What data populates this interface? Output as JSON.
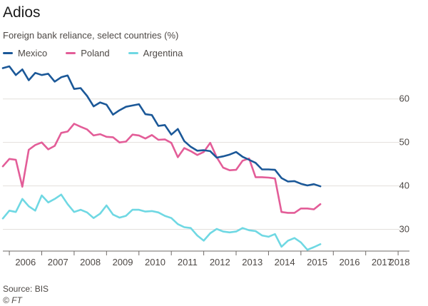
{
  "header": {
    "title": "Adios",
    "subtitle": "Foreign bank reliance, select countries (%)"
  },
  "footer": {
    "source": "Source: BIS",
    "credit": "© FT"
  },
  "colors": {
    "Mexico": "#1b5898",
    "Poland": "#e35d98",
    "Argentina": "#6fd8e3",
    "grid": "#e2dfdc",
    "axis": "#6e6a67"
  },
  "chart_data": {
    "type": "line",
    "title": "",
    "xlabel": "",
    "ylabel": "",
    "xlim": [
      2005.8,
      2018.35
    ],
    "ylim": [
      25,
      68
    ],
    "yticks": [
      30,
      40,
      50,
      60
    ],
    "xtick_labels": [
      "2006",
      "2007",
      "2008",
      "2009",
      "2010",
      "2011",
      "2012",
      "2013",
      "2014",
      "2015",
      "2016",
      "2017",
      "2018"
    ],
    "grid": true,
    "legend": "top-left",
    "series": [
      {
        "name": "Mexico",
        "x": [
          2005.8,
          2006.0,
          2006.2,
          2006.4,
          2006.6,
          2006.8,
          2007.0,
          2007.2,
          2007.4,
          2007.6,
          2007.8,
          2008.0,
          2008.2,
          2008.4,
          2008.6,
          2008.8,
          2009.0,
          2009.2,
          2009.4,
          2009.6,
          2009.8,
          2010.0,
          2010.2,
          2010.4,
          2010.6,
          2010.8,
          2011.0,
          2011.2,
          2011.4,
          2011.6,
          2011.8,
          2012.0,
          2012.2,
          2012.4,
          2012.6,
          2012.8,
          2013.0,
          2013.2,
          2013.4,
          2013.6,
          2013.8,
          2014.0,
          2014.2,
          2014.4,
          2014.6,
          2014.8,
          2015.0,
          2015.2,
          2015.4,
          2015.6,
          2015.8,
          2016.0,
          2016.2,
          2016.4,
          2016.6,
          2016.8,
          2017.0,
          2017.2,
          2017.4,
          2017.6,
          2017.8,
          2018.0,
          2018.2
        ],
        "values": [
          67.1,
          67.5,
          65.5,
          66.8,
          64.3,
          66.0,
          65.5,
          65.8,
          64.0,
          65.0,
          65.4,
          62.3,
          62.5,
          60.7,
          58.3,
          59.2,
          58.7,
          56.4,
          57.4,
          58.2,
          58.5,
          58.8,
          56.5,
          56.3,
          53.8,
          54.0,
          51.8,
          53.1,
          50.3,
          49.0,
          48.1,
          48.2,
          48.0,
          46.5,
          46.8,
          47.2,
          47.8,
          46.7,
          46.0,
          45.3,
          43.8,
          43.8,
          43.7,
          41.8,
          41.0,
          41.1,
          40.5,
          40.1,
          40.4,
          39.9,
          null,
          null,
          null,
          null,
          null,
          null,
          null,
          null,
          null,
          null,
          null,
          null,
          null
        ]
      },
      {
        "name": "Poland",
        "x": [
          2005.8,
          2006.0,
          2006.2,
          2006.4,
          2006.6,
          2006.8,
          2007.0,
          2007.2,
          2007.4,
          2007.6,
          2007.8,
          2008.0,
          2008.2,
          2008.4,
          2008.6,
          2008.8,
          2009.0,
          2009.2,
          2009.4,
          2009.6,
          2009.8,
          2010.0,
          2010.2,
          2010.4,
          2010.6,
          2010.8,
          2011.0,
          2011.2,
          2011.4,
          2011.6,
          2011.8,
          2012.0,
          2012.2,
          2012.4,
          2012.6,
          2012.8,
          2013.0,
          2013.2,
          2013.4,
          2013.6,
          2013.8,
          2014.0,
          2014.2,
          2014.4,
          2014.6,
          2014.8,
          2015.0,
          2015.2,
          2015.4,
          2015.6,
          2015.8,
          2016.0,
          2016.2,
          2016.4,
          2016.6,
          2016.8,
          2017.0,
          2017.2,
          2017.4,
          2017.6,
          2017.8,
          2018.0,
          2018.2
        ],
        "values": [
          44.5,
          46.2,
          46.0,
          39.8,
          48.3,
          49.4,
          50.0,
          48.4,
          49.2,
          52.2,
          52.5,
          54.3,
          53.6,
          53.0,
          51.6,
          51.9,
          51.3,
          51.2,
          50.0,
          50.2,
          51.8,
          51.6,
          50.9,
          51.7,
          50.6,
          50.7,
          49.9,
          46.6,
          48.7,
          48.0,
          47.1,
          47.8,
          49.9,
          46.6,
          44.2,
          43.6,
          43.7,
          45.8,
          46.3,
          42.0,
          42.0,
          41.9,
          41.7,
          34.0,
          33.8,
          33.8,
          34.8,
          34.8,
          34.6,
          35.8,
          null,
          null,
          null,
          null,
          null,
          null,
          null,
          null,
          null,
          null,
          null,
          null,
          null
        ]
      },
      {
        "name": "Argentina",
        "x": [
          2005.8,
          2006.0,
          2006.2,
          2006.4,
          2006.6,
          2006.8,
          2007.0,
          2007.2,
          2007.4,
          2007.6,
          2007.8,
          2008.0,
          2008.2,
          2008.4,
          2008.6,
          2008.8,
          2009.0,
          2009.2,
          2009.4,
          2009.6,
          2009.8,
          2010.0,
          2010.2,
          2010.4,
          2010.6,
          2010.8,
          2011.0,
          2011.2,
          2011.4,
          2011.6,
          2011.8,
          2012.0,
          2012.2,
          2012.4,
          2012.6,
          2012.8,
          2013.0,
          2013.2,
          2013.4,
          2013.6,
          2013.8,
          2014.0,
          2014.2,
          2014.4,
          2014.6,
          2014.8,
          2015.0,
          2015.2,
          2015.4,
          2015.6,
          2015.8,
          2016.0,
          2016.2,
          2016.4,
          2016.6,
          2016.8,
          2017.0,
          2017.2,
          2017.4,
          2017.6,
          2017.8,
          2018.0,
          2018.2
        ],
        "values": [
          32.5,
          34.3,
          34.0,
          37.0,
          35.3,
          34.3,
          37.8,
          36.2,
          37.0,
          38.0,
          35.8,
          34.0,
          34.5,
          33.9,
          32.6,
          33.6,
          35.5,
          33.4,
          32.7,
          33.1,
          34.5,
          34.5,
          34.1,
          34.2,
          33.9,
          33.1,
          32.6,
          31.2,
          30.5,
          30.3,
          28.6,
          27.4,
          29.1,
          30.1,
          29.5,
          29.3,
          29.5,
          30.3,
          29.8,
          29.6,
          28.6,
          28.3,
          28.9,
          26.0,
          27.4,
          28.0,
          27.0,
          25.3,
          25.9,
          26.6,
          null,
          null,
          null,
          null,
          null,
          null,
          null,
          null,
          null,
          null,
          null,
          null,
          null
        ]
      }
    ]
  }
}
